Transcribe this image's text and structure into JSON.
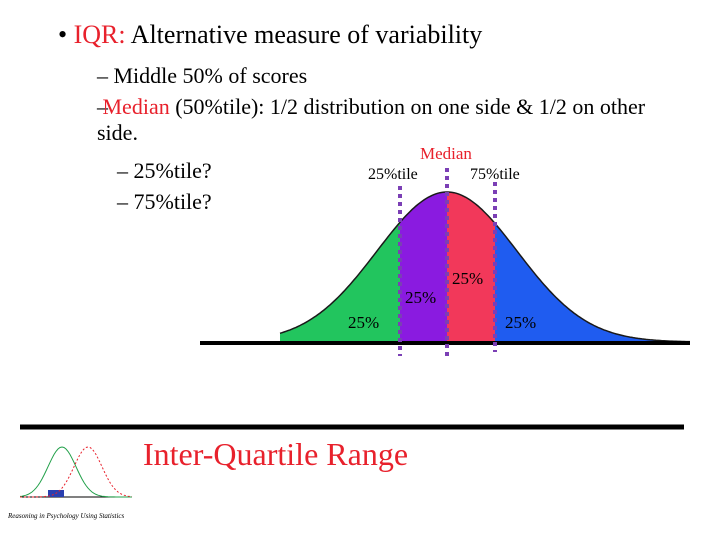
{
  "slide": {
    "bullet": {
      "marker": "•",
      "highlight": "IQR:",
      "text": " Alternative measure of variability"
    },
    "sub_items": [
      {
        "marker": "–",
        "highlight": "",
        "text": " Middle 50% of scores"
      },
      {
        "marker": "–",
        "highlight": " Median",
        "text": " (50%tile): 1/2 distribution on one side & 1/2 on other side."
      },
      {
        "marker": "–",
        "highlight": "",
        "text": " 25%tile?"
      },
      {
        "marker": "–",
        "highlight": "",
        "text": " 75%tile?"
      }
    ],
    "diagram": {
      "median_label": "Median",
      "q1_label": "25%tile",
      "q3_label": "75%tile",
      "region_labels": [
        "25%",
        "25%",
        "25%",
        "25%"
      ]
    },
    "footer": {
      "title": "Inter-Quartile Range",
      "caption": "Reasoning in Psychology Using Statistics"
    }
  }
}
